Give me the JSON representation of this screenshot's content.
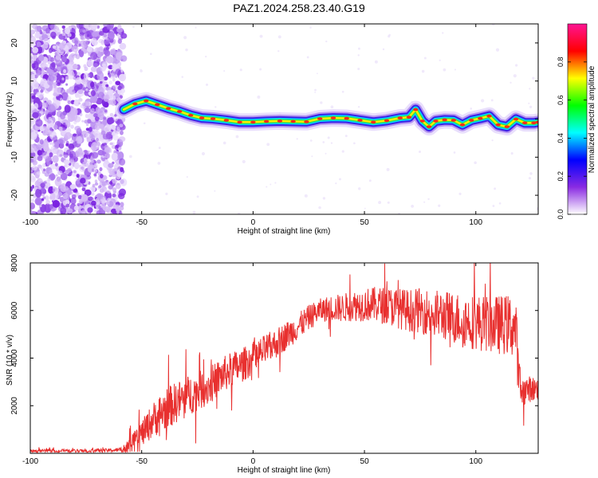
{
  "title": "PAZ1.2024.258.23.40.G19",
  "chart_data": [
    {
      "type": "heatmap",
      "xlabel": "Height of straight line (km)",
      "ylabel": "Frequency (Hz)",
      "xlim": [
        -100,
        128
      ],
      "ylim": [
        -25,
        25
      ],
      "xticks": [
        -100,
        -50,
        0,
        50,
        100
      ],
      "yticks": [
        -20,
        -10,
        0,
        10,
        20
      ],
      "colorbar": {
        "label": "Normalized spectral amplitude",
        "range": [
          0,
          1
        ],
        "ticks": [
          "0.0",
          "0.2",
          "0.4",
          "0.6",
          "0.8"
        ],
        "colors": [
          "#ffffff",
          "#8a2be2",
          "#0000ff",
          "#00ffff",
          "#00ff00",
          "#ffff00",
          "#ff0000",
          "#ff1493"
        ]
      },
      "noise_region_x": [
        -100,
        -58
      ],
      "ridge": [
        {
          "x": -58,
          "y": 2.5
        },
        {
          "x": -53,
          "y": 4
        },
        {
          "x": -48,
          "y": 4.8
        },
        {
          "x": -43,
          "y": 3.8
        },
        {
          "x": -38,
          "y": 2.8
        },
        {
          "x": -33,
          "y": 2
        },
        {
          "x": -28,
          "y": 1
        },
        {
          "x": -23,
          "y": 0.3
        },
        {
          "x": -18,
          "y": 0.1
        },
        {
          "x": -12,
          "y": -0.3
        },
        {
          "x": -6,
          "y": -0.8
        },
        {
          "x": 0,
          "y": -0.8
        },
        {
          "x": 6,
          "y": -0.6
        },
        {
          "x": 12,
          "y": -0.5
        },
        {
          "x": 18,
          "y": -0.6
        },
        {
          "x": 24,
          "y": -0.7
        },
        {
          "x": 30,
          "y": 0.1
        },
        {
          "x": 36,
          "y": 0.3
        },
        {
          "x": 42,
          "y": 0.2
        },
        {
          "x": 48,
          "y": -0.3
        },
        {
          "x": 54,
          "y": -0.8
        },
        {
          "x": 60,
          "y": -0.4
        },
        {
          "x": 66,
          "y": 0.3
        },
        {
          "x": 70,
          "y": 0.5
        },
        {
          "x": 73,
          "y": 2.5
        },
        {
          "x": 76,
          "y": -0.5
        },
        {
          "x": 79,
          "y": -2
        },
        {
          "x": 82,
          "y": -0.5
        },
        {
          "x": 86,
          "y": -0.2
        },
        {
          "x": 90,
          "y": -0.3
        },
        {
          "x": 94,
          "y": -1.5
        },
        {
          "x": 98,
          "y": -0.3
        },
        {
          "x": 102,
          "y": 0.2
        },
        {
          "x": 106,
          "y": 0.8
        },
        {
          "x": 110,
          "y": -1.5
        },
        {
          "x": 114,
          "y": -2
        },
        {
          "x": 118,
          "y": 0
        },
        {
          "x": 122,
          "y": -1
        },
        {
          "x": 126,
          "y": -1
        },
        {
          "x": 128,
          "y": -0.8
        }
      ]
    },
    {
      "type": "line",
      "xlabel": "Height of straight line (km)",
      "ylabel": "SNR (10 * v/v)",
      "xlim": [
        -100,
        128
      ],
      "ylim": [
        0,
        8000
      ],
      "xticks": [
        -100,
        -50,
        0,
        50,
        100
      ],
      "yticks": [
        2000,
        4000,
        6000,
        8000
      ],
      "color": "#e8302f",
      "series": [
        {
          "x": -100,
          "y": 100
        },
        {
          "x": -80,
          "y": 100
        },
        {
          "x": -65,
          "y": 120
        },
        {
          "x": -58,
          "y": 150
        },
        {
          "x": -55,
          "y": 300
        },
        {
          "x": -50,
          "y": 800
        },
        {
          "x": -45,
          "y": 1400
        },
        {
          "x": -40,
          "y": 1800
        },
        {
          "x": -35,
          "y": 2100
        },
        {
          "x": -30,
          "y": 2400
        },
        {
          "x": -25,
          "y": 2600
        },
        {
          "x": -20,
          "y": 2800
        },
        {
          "x": -15,
          "y": 3200
        },
        {
          "x": -10,
          "y": 3500
        },
        {
          "x": -5,
          "y": 3700
        },
        {
          "x": 0,
          "y": 4000
        },
        {
          "x": 5,
          "y": 4300
        },
        {
          "x": 10,
          "y": 4600
        },
        {
          "x": 15,
          "y": 4950
        },
        {
          "x": 20,
          "y": 5300
        },
        {
          "x": 25,
          "y": 5700
        },
        {
          "x": 30,
          "y": 6000
        },
        {
          "x": 35,
          "y": 6100
        },
        {
          "x": 40,
          "y": 6100
        },
        {
          "x": 45,
          "y": 6200
        },
        {
          "x": 50,
          "y": 6250
        },
        {
          "x": 55,
          "y": 6250
        },
        {
          "x": 60,
          "y": 6200
        },
        {
          "x": 65,
          "y": 6100
        },
        {
          "x": 70,
          "y": 6000
        },
        {
          "x": 75,
          "y": 6000
        },
        {
          "x": 80,
          "y": 5900
        },
        {
          "x": 85,
          "y": 5800
        },
        {
          "x": 90,
          "y": 5700
        },
        {
          "x": 95,
          "y": 5600
        },
        {
          "x": 100,
          "y": 5500
        },
        {
          "x": 105,
          "y": 5450
        },
        {
          "x": 110,
          "y": 5400
        },
        {
          "x": 115,
          "y": 5400
        },
        {
          "x": 118,
          "y": 5200
        },
        {
          "x": 119,
          "y": 3500
        },
        {
          "x": 120,
          "y": 2600
        },
        {
          "x": 124,
          "y": 2700
        },
        {
          "x": 128,
          "y": 2700
        }
      ],
      "noise_amplitude": [
        {
          "x": -100,
          "y": 60
        },
        {
          "x": -60,
          "y": 80
        },
        {
          "x": -55,
          "y": 400
        },
        {
          "x": -40,
          "y": 900
        },
        {
          "x": -20,
          "y": 800
        },
        {
          "x": 0,
          "y": 700
        },
        {
          "x": 30,
          "y": 500
        },
        {
          "x": 60,
          "y": 800
        },
        {
          "x": 90,
          "y": 1100
        },
        {
          "x": 118,
          "y": 1300
        },
        {
          "x": 121,
          "y": 600
        },
        {
          "x": 128,
          "y": 500
        }
      ]
    }
  ]
}
